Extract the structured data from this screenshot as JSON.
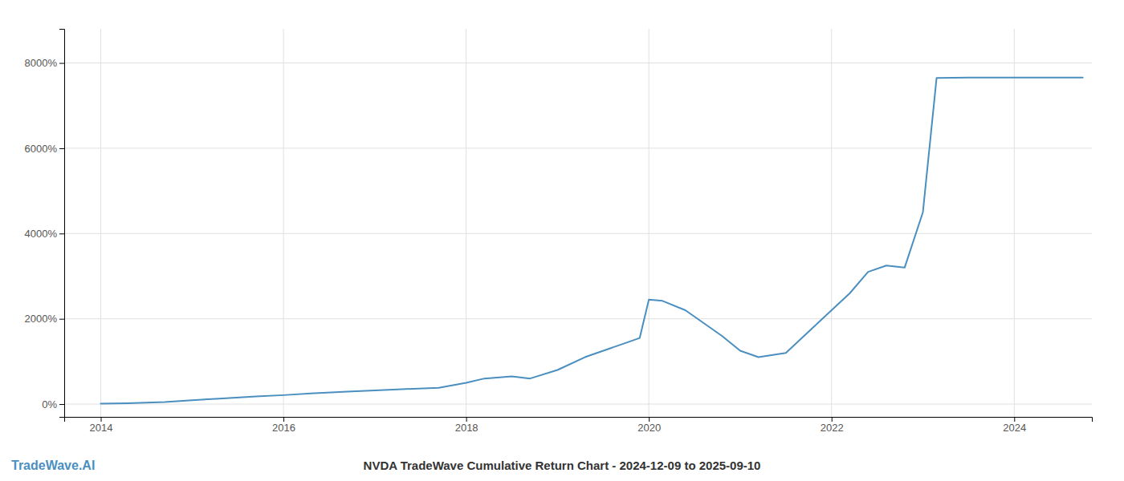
{
  "chart_data": {
    "type": "line",
    "title": "NVDA TradeWave Cumulative Return Chart - 2024-12-09 to 2025-09-10",
    "annotations": [
      "TradeWave.AI"
    ],
    "x": [
      2014.0,
      2014.3,
      2014.7,
      2015.0,
      2015.3,
      2015.7,
      2016.0,
      2016.3,
      2016.7,
      2017.0,
      2017.3,
      2017.7,
      2018.0,
      2018.2,
      2018.5,
      2018.7,
      2019.0,
      2019.3,
      2019.7,
      2019.9,
      2020.0,
      2020.15,
      2020.4,
      2020.6,
      2020.8,
      2021.0,
      2021.2,
      2021.5,
      2021.8,
      2022.0,
      2022.2,
      2022.4,
      2022.6,
      2022.8,
      2023.0,
      2023.15,
      2023.5,
      2024.0,
      2024.5,
      2024.75
    ],
    "values": [
      10,
      20,
      50,
      90,
      130,
      180,
      210,
      250,
      290,
      320,
      350,
      380,
      500,
      600,
      650,
      600,
      800,
      1100,
      1400,
      1550,
      2450,
      2420,
      2200,
      1900,
      1600,
      1250,
      1100,
      1200,
      1800,
      2200,
      2600,
      3100,
      3250,
      3200,
      4500,
      7650,
      7660,
      7660,
      7660,
      7660
    ],
    "color": "#4a8fc0",
    "xlim": [
      2013.6,
      2024.85
    ],
    "ylim": [
      -300,
      8800
    ],
    "xticks": [
      2014,
      2016,
      2018,
      2020,
      2022,
      2024
    ],
    "yticks": [
      {
        "value": 0,
        "label": "0%"
      },
      {
        "value": 2000,
        "label": "2000%"
      },
      {
        "value": 4000,
        "label": "4000%"
      },
      {
        "value": 6000,
        "label": "6000%"
      },
      {
        "value": 8000,
        "label": "8000%"
      }
    ],
    "grid": true
  }
}
